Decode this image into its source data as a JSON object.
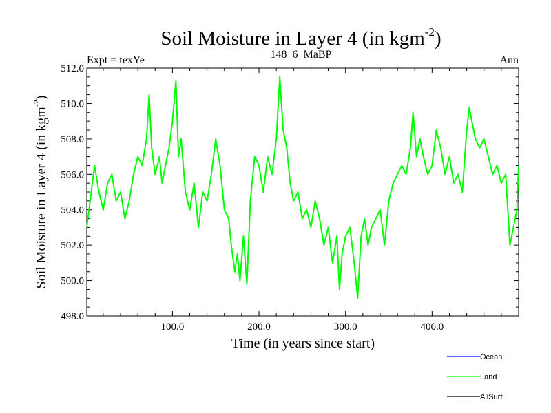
{
  "chart_data": {
    "type": "line",
    "title_main": "Soil Moisture in Layer 4 (in kgm",
    "title_exp": "-2",
    "title_close": ")",
    "subtitle_left": "Expt = texYe",
    "subtitle_center": "148_6_MaBP",
    "subtitle_right": "Ann",
    "xlabel": "Time (in years since start)",
    "ylabel_main": "Soil Moisture in Layer 4 (in kgm",
    "ylabel_exp": "-2",
    "ylabel_close": ")",
    "xlim": [
      1,
      500
    ],
    "ylim": [
      498.0,
      512.0
    ],
    "xticks": [
      100,
      200,
      300,
      400
    ],
    "xtick_labels": [
      "100.0",
      "200.0",
      "300.0",
      "400.0"
    ],
    "yticks": [
      498,
      500,
      502,
      504,
      506,
      508,
      510,
      512
    ],
    "ytick_labels": [
      "498.0",
      "500.0",
      "502.0",
      "504.0",
      "506.0",
      "508.0",
      "510.0",
      "512.0"
    ],
    "legend_position": "bottom-right",
    "series": [
      {
        "name": "Land",
        "color": "#00ff00",
        "x": [
          1,
          10,
          15,
          20,
          25,
          30,
          35,
          40,
          45,
          50,
          55,
          60,
          65,
          70,
          73,
          76,
          80,
          85,
          88,
          92,
          96,
          100,
          104,
          107,
          110,
          115,
          120,
          125,
          130,
          135,
          140,
          145,
          150,
          155,
          160,
          165,
          168,
          172,
          175,
          178,
          182,
          186,
          190,
          195,
          200,
          205,
          210,
          215,
          220,
          224,
          228,
          232,
          236,
          240,
          245,
          250,
          255,
          260,
          265,
          270,
          275,
          280,
          285,
          290,
          293,
          296,
          300,
          305,
          310,
          314,
          318,
          322,
          326,
          330,
          335,
          340,
          345,
          350,
          355,
          360,
          365,
          370,
          375,
          378,
          382,
          386,
          390,
          395,
          400,
          405,
          410,
          415,
          420,
          425,
          430,
          435,
          440,
          443,
          446,
          450,
          455,
          460,
          465,
          470,
          475,
          480,
          485,
          490,
          494,
          498,
          500
        ],
        "values": [
          503.0,
          506.5,
          505.0,
          504.0,
          505.5,
          506.0,
          504.5,
          505.0,
          503.5,
          504.5,
          506.0,
          507.0,
          506.5,
          508.0,
          510.5,
          507.5,
          506.0,
          507.0,
          505.5,
          506.5,
          507.5,
          509.0,
          511.3,
          507.0,
          508.0,
          505.0,
          504.0,
          505.5,
          503.0,
          505.0,
          504.5,
          506.0,
          508.0,
          506.5,
          504.0,
          503.5,
          502.0,
          500.5,
          501.5,
          500.0,
          502.5,
          499.8,
          504.5,
          507.0,
          506.5,
          505.0,
          507.0,
          506.0,
          508.0,
          511.5,
          508.5,
          507.5,
          505.5,
          504.5,
          505.0,
          503.5,
          504.0,
          503.0,
          504.5,
          503.5,
          502.0,
          503.0,
          501.0,
          502.5,
          499.5,
          501.5,
          502.5,
          503.0,
          501.0,
          499.0,
          502.5,
          503.5,
          502.0,
          503.0,
          503.5,
          504.0,
          502.0,
          504.5,
          505.5,
          506.0,
          506.5,
          506.0,
          507.5,
          509.5,
          507.0,
          508.0,
          507.0,
          506.0,
          506.5,
          508.5,
          507.5,
          506.0,
          507.0,
          505.5,
          506.0,
          505.0,
          508.5,
          509.8,
          509.0,
          508.0,
          507.5,
          508.0,
          507.0,
          506.0,
          506.5,
          505.5,
          506.0,
          502.0,
          503.0,
          504.0,
          506.5
        ]
      }
    ],
    "legend": [
      {
        "label": "Ocean",
        "color": "#0000ff"
      },
      {
        "label": "Land",
        "color": "#00ff00"
      },
      {
        "label": "AllSurf",
        "color": "#000000"
      }
    ]
  }
}
